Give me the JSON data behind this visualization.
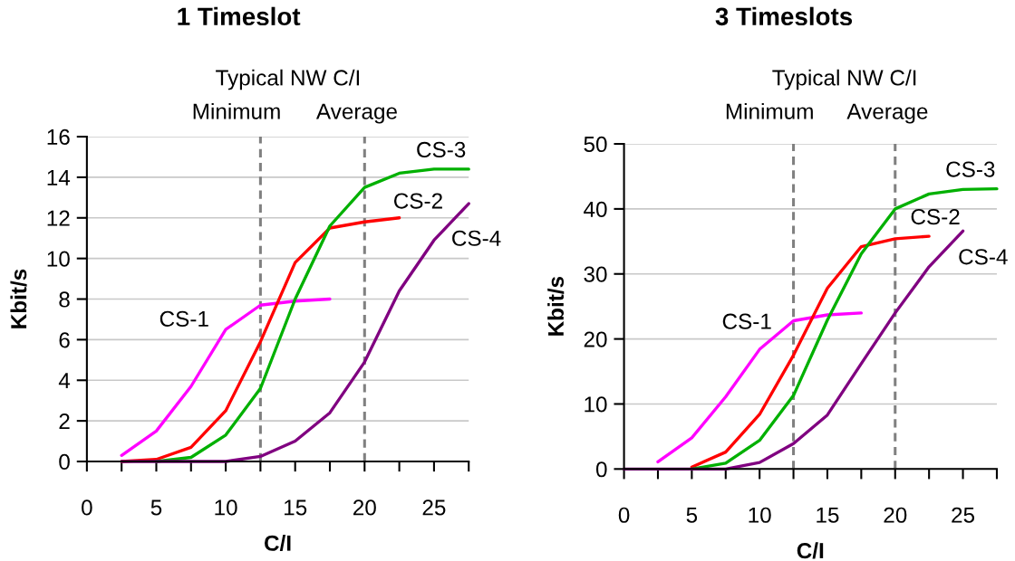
{
  "chart_data": [
    {
      "type": "line",
      "title": "1 Timeslot",
      "xlabel": "C/I",
      "ylabel": "Kbit/s",
      "annotations": [
        "Typical NW C/I"
      ],
      "xlim": [
        0,
        27.5
      ],
      "xticks": [
        0,
        {
          "value": 2.5,
          "label": null
        },
        5,
        {
          "value": 7.5,
          "label": null
        },
        10,
        {
          "value": 12.5,
          "label": null
        },
        15,
        {
          "value": 17.5,
          "label": null
        },
        20,
        {
          "value": 22.5,
          "label": null
        },
        25,
        {
          "value": 27.5,
          "label": null
        }
      ],
      "ylim": [
        0,
        16
      ],
      "yticks": [
        0,
        2,
        4,
        6,
        8,
        10,
        12,
        14,
        16
      ],
      "grid": "y",
      "ref_lines": [
        {
          "axis": "x",
          "value": 12.5,
          "label": "Minimum",
          "color": "#808080",
          "line_style": "dashed"
        },
        {
          "axis": "x",
          "value": 20,
          "label": "Average",
          "color": "#808080",
          "line_style": "dashed"
        }
      ],
      "series": [
        {
          "name": "CS-1",
          "color": "#ff00ff",
          "x": [
            2.5,
            5,
            7.5,
            10,
            12.5,
            15,
            17.5
          ],
          "values": [
            0.3,
            1.5,
            3.7,
            6.5,
            7.7,
            7.9,
            8.0
          ]
        },
        {
          "name": "CS-2",
          "color": "#ff0000",
          "x": [
            2.5,
            5,
            7.5,
            10,
            12.5,
            15,
            17.5,
            20,
            22.5
          ],
          "values": [
            0,
            0.1,
            0.7,
            2.5,
            5.9,
            9.8,
            11.5,
            11.8,
            12.0
          ]
        },
        {
          "name": "CS-3",
          "color": "#00b000",
          "x": [
            5,
            7.5,
            10,
            12.5,
            15,
            17.5,
            20,
            22.5,
            25,
            27.5
          ],
          "values": [
            0,
            0.2,
            1.3,
            3.6,
            8.0,
            11.6,
            13.5,
            14.2,
            14.4,
            14.4
          ]
        },
        {
          "name": "CS-4",
          "color": "#800080",
          "x": [
            2.5,
            5,
            7.5,
            10,
            12.5,
            15,
            17.5,
            20,
            22.5,
            25,
            27.5
          ],
          "values": [
            0,
            0,
            0,
            0,
            0.25,
            1.0,
            2.4,
            4.9,
            8.4,
            10.9,
            12.7
          ]
        }
      ]
    },
    {
      "type": "line",
      "title": "3 Timeslots",
      "xlabel": "C/I",
      "ylabel": "Kbit/s",
      "annotations": [
        "Typical NW C/I"
      ],
      "xlim": [
        0,
        27.5
      ],
      "xticks": [
        0,
        {
          "value": 2.5,
          "label": null
        },
        5,
        {
          "value": 7.5,
          "label": null
        },
        10,
        {
          "value": 12.5,
          "label": null
        },
        15,
        {
          "value": 17.5,
          "label": null
        },
        20,
        {
          "value": 22.5,
          "label": null
        },
        25,
        {
          "value": 27.5,
          "label": null
        }
      ],
      "ylim": [
        0,
        50
      ],
      "yticks": [
        0,
        10,
        20,
        30,
        40,
        50
      ],
      "grid": "y",
      "ref_lines": [
        {
          "axis": "x",
          "value": 12.5,
          "label": "Minimum",
          "color": "#808080",
          "line_style": "dashed"
        },
        {
          "axis": "x",
          "value": 20,
          "label": "Average",
          "color": "#808080",
          "line_style": "dashed"
        }
      ],
      "series": [
        {
          "name": "CS-1",
          "color": "#ff00ff",
          "x": [
            2.5,
            5,
            7.5,
            10,
            12.5,
            15,
            17.5
          ],
          "values": [
            1.1,
            4.8,
            11.1,
            18.4,
            22.8,
            23.7,
            24.0
          ]
        },
        {
          "name": "CS-2",
          "color": "#ff0000",
          "x": [
            5,
            7.5,
            10,
            12.5,
            15,
            17.5,
            20,
            22.5
          ],
          "values": [
            0.3,
            2.6,
            8.4,
            17.5,
            27.8,
            34.2,
            35.4,
            35.8
          ]
        },
        {
          "name": "CS-3",
          "color": "#00b000",
          "x": [
            5,
            7.5,
            10,
            12.5,
            15,
            17.5,
            20,
            22.5,
            25,
            27.5
          ],
          "values": [
            0,
            0.9,
            4.4,
            11.3,
            22.9,
            33.1,
            40.0,
            42.3,
            43.0,
            43.1
          ]
        },
        {
          "name": "CS-4",
          "color": "#800080",
          "x": [
            0,
            2.5,
            5,
            7.5,
            10,
            12.5,
            15,
            17.5,
            20,
            22.5,
            25
          ],
          "values": [
            0,
            0,
            0,
            0,
            1.0,
            3.9,
            8.3,
            16.2,
            24.0,
            31.1,
            36.6
          ]
        }
      ]
    }
  ]
}
